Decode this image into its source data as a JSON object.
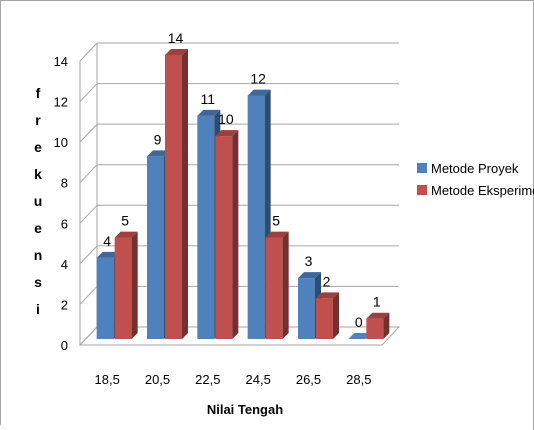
{
  "chart_data": {
    "type": "bar",
    "title": "",
    "xlabel": "Nilai Tengah",
    "ylabel": "frekuensi",
    "ylim": [
      0,
      14
    ],
    "yticks": [
      0,
      2,
      4,
      6,
      8,
      10,
      12,
      14
    ],
    "grid": true,
    "three_d": true,
    "legend_position": "right",
    "categories": [
      "18,5",
      "20,5",
      "22,5",
      "24,5",
      "26,5",
      "28,5"
    ],
    "series": [
      {
        "name": "Metode Proyek",
        "color": "#4f81bd",
        "values": [
          4,
          9,
          11,
          12,
          3,
          0
        ]
      },
      {
        "name": "Metode Eksperimen",
        "color": "#c0504d",
        "values": [
          5,
          14,
          10,
          5,
          2,
          1
        ]
      }
    ]
  }
}
